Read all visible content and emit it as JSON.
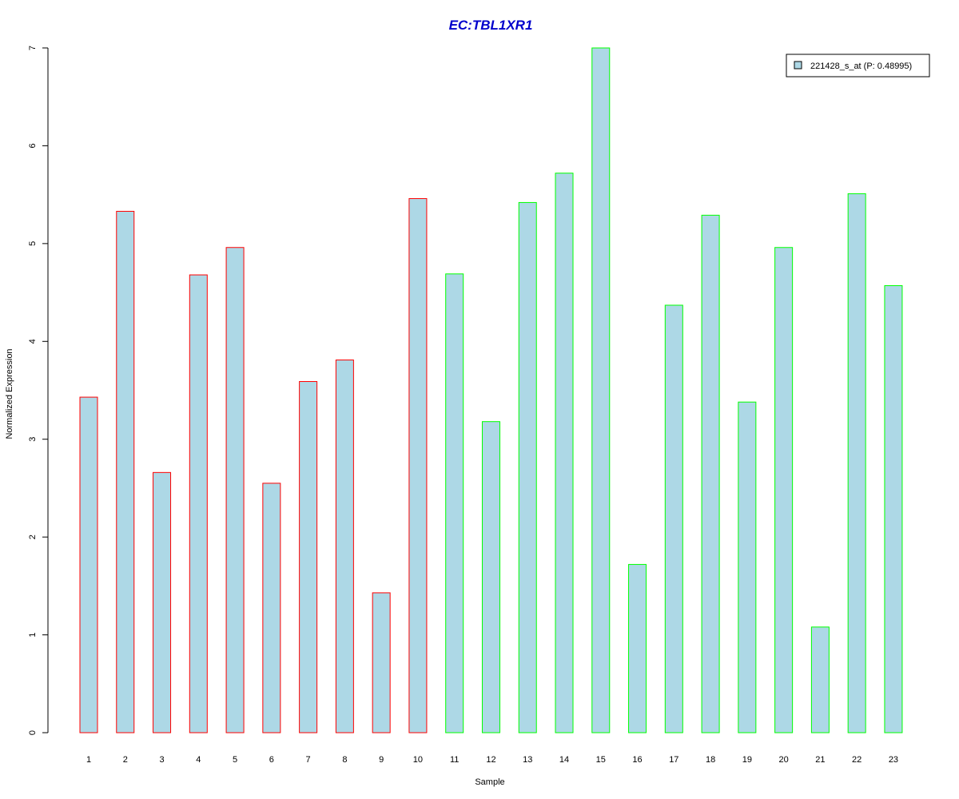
{
  "chart_data": {
    "type": "bar",
    "title": "EC:TBL1XR1",
    "xlabel": "Sample",
    "ylabel": "Normalized Expression",
    "ylim": [
      0,
      7
    ],
    "yticks": [
      "0",
      "1",
      "2",
      "3",
      "4",
      "5",
      "6",
      "7"
    ],
    "categories": [
      "1",
      "2",
      "3",
      "4",
      "5",
      "6",
      "7",
      "8",
      "9",
      "10",
      "11",
      "12",
      "13",
      "14",
      "15",
      "16",
      "17",
      "18",
      "19",
      "20",
      "21",
      "22",
      "23"
    ],
    "series": [
      {
        "name": "221428_s_at (P: 0.48995)",
        "values": [
          3.43,
          5.33,
          2.66,
          4.68,
          4.96,
          2.55,
          3.59,
          3.81,
          1.43,
          5.46,
          4.69,
          3.18,
          5.42,
          5.72,
          7.0,
          1.72,
          4.37,
          5.29,
          3.38,
          4.96,
          1.08,
          5.51,
          4.57
        ]
      }
    ],
    "bar_group": [
      "red",
      "red",
      "red",
      "red",
      "red",
      "red",
      "red",
      "red",
      "red",
      "red",
      "green",
      "green",
      "green",
      "green",
      "green",
      "green",
      "green",
      "green",
      "green",
      "green",
      "green",
      "green",
      "green"
    ],
    "legend": {
      "label": "221428_s_at (P: 0.48995)",
      "placement": "top-right"
    },
    "grid": false,
    "colors": {
      "fill": "#add8e6",
      "red": "#ff0000",
      "green": "#00ff00",
      "title": "#0000cc"
    }
  }
}
